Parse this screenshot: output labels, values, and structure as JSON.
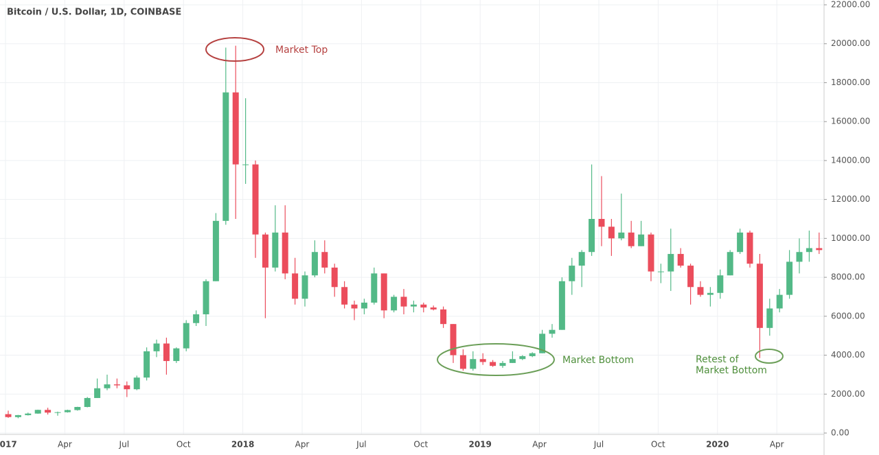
{
  "chart_data": {
    "type": "candlestick",
    "title": "Bitcoin / U.S. Dollar, 1D, COINBASE",
    "categories": [
      "2017",
      null,
      null,
      null,
      null,
      null,
      "Apr",
      null,
      null,
      null,
      null,
      null,
      "Jul",
      null,
      null,
      null,
      null,
      null,
      "Oct",
      null,
      null,
      null,
      null,
      null,
      "2018",
      null,
      null,
      null,
      null,
      null,
      "Apr",
      null,
      null,
      null,
      null,
      null,
      "Jul",
      null,
      null,
      null,
      null,
      null,
      "Oct",
      null,
      null,
      null,
      null,
      null,
      "2019",
      null,
      null,
      null,
      null,
      null,
      "Apr",
      null,
      null,
      null,
      null,
      null,
      "Jul",
      null,
      null,
      null,
      null,
      null,
      "Oct",
      null,
      null,
      null,
      null,
      null,
      "2020",
      null,
      null,
      null,
      null,
      null,
      "Apr",
      null,
      null,
      null,
      null
    ],
    "series": [
      {
        "up_color": "#53b987",
        "down_color": "#eb4d5c",
        "open": [
          970,
          820,
          920,
          1000,
          1190,
          1050,
          1070,
          1180,
          1340,
          1800,
          2300,
          2500,
          2450,
          2250,
          2850,
          4200,
          4600,
          3700,
          4350,
          5650,
          6100,
          7800,
          10900,
          17500,
          13800,
          13800,
          10200,
          8500,
          10300,
          8200,
          6900,
          8100,
          9300,
          8500,
          7500,
          6600,
          6400,
          6700,
          8200,
          6300,
          7000,
          6500,
          6600,
          6450,
          6350,
          5600,
          4000,
          3300,
          3800,
          3650,
          3450,
          3600,
          3800,
          3950,
          4100,
          5100,
          5300,
          7800,
          8600,
          9300,
          11000,
          10600,
          10000,
          10300,
          9600,
          10200,
          8300,
          8300,
          9200,
          8600,
          7500,
          7100,
          7200,
          8100,
          9300,
          10300,
          8700,
          5400,
          6400,
          7100,
          8800,
          9300,
          9500
        ],
        "high": [
          1150,
          930,
          1050,
          1200,
          1300,
          1100,
          1200,
          1350,
          1850,
          2800,
          3000,
          2800,
          2650,
          2950,
          4400,
          4800,
          4900,
          4400,
          5800,
          6300,
          7900,
          11300,
          19800,
          19900,
          17200,
          14000,
          10300,
          11700,
          11700,
          9000,
          8300,
          9900,
          9900,
          8700,
          7800,
          6800,
          6900,
          8500,
          8200,
          7100,
          7400,
          6800,
          6700,
          6550,
          6500,
          5600,
          4300,
          4200,
          4100,
          3750,
          3700,
          4200,
          4000,
          4150,
          5300,
          5600,
          8000,
          9000,
          9400,
          13800,
          13200,
          11000,
          12300,
          10900,
          10900,
          10300,
          8700,
          10500,
          9500,
          8700,
          7800,
          7500,
          8400,
          9400,
          10500,
          10400,
          9200,
          6900,
          7400,
          9400,
          10000,
          10400,
          10300
        ],
        "low": [
          780,
          760,
          900,
          990,
          950,
          890,
          1050,
          1150,
          1320,
          1800,
          2200,
          2300,
          1850,
          2200,
          2700,
          3900,
          3000,
          3600,
          4200,
          5500,
          5500,
          7800,
          10700,
          11000,
          12800,
          9000,
          5900,
          8300,
          7900,
          6600,
          6500,
          8000,
          8200,
          7000,
          6400,
          5800,
          6100,
          6600,
          5900,
          6200,
          6100,
          6200,
          6200,
          6300,
          5400,
          3600,
          3200,
          3200,
          3500,
          3400,
          3350,
          3600,
          3750,
          3900,
          4100,
          4900,
          5300,
          7100,
          7500,
          9100,
          9600,
          9100,
          9900,
          9500,
          9600,
          7800,
          7700,
          7300,
          8500,
          6600,
          7000,
          6500,
          6900,
          8100,
          9200,
          8500,
          3850,
          5000,
          6200,
          6900,
          8200,
          8800,
          9200
        ],
        "close": [
          820,
          920,
          1000,
          1190,
          1050,
          1070,
          1180,
          1340,
          1800,
          2300,
          2500,
          2450,
          2250,
          2850,
          4200,
          4600,
          3700,
          4350,
          5650,
          6100,
          7800,
          10900,
          17500,
          13800,
          13800,
          10200,
          8500,
          10300,
          8200,
          6900,
          8100,
          9300,
          8500,
          7500,
          6600,
          6400,
          6700,
          8200,
          6300,
          7000,
          6500,
          6600,
          6450,
          6350,
          5600,
          4000,
          3300,
          3800,
          3650,
          3450,
          3600,
          3800,
          3950,
          4100,
          5100,
          5300,
          7800,
          8600,
          9300,
          11000,
          10600,
          10000,
          10300,
          9600,
          10200,
          8300,
          8300,
          9200,
          8600,
          7500,
          7100,
          7200,
          8100,
          9300,
          10300,
          8700,
          5400,
          6400,
          7100,
          8800,
          9300,
          9500,
          9400
        ]
      }
    ],
    "ylim": [
      0,
      22000
    ],
    "yticks": [
      {
        "value": 0,
        "label": "0.00"
      },
      {
        "value": 2000,
        "label": "2000.00"
      },
      {
        "value": 4000,
        "label": "4000.00"
      },
      {
        "value": 6000,
        "label": "6000.00"
      },
      {
        "value": 8000,
        "label": "8000.00"
      },
      {
        "value": 10000,
        "label": "10000.00"
      },
      {
        "value": 12000,
        "label": "12000.00"
      },
      {
        "value": 14000,
        "label": "14000.00"
      },
      {
        "value": 16000,
        "label": "16000.00"
      },
      {
        "value": 18000,
        "label": "18000.00"
      },
      {
        "value": 20000,
        "label": "20000.00"
      },
      {
        "value": 22000,
        "label": "22000.00"
      }
    ],
    "grid": true,
    "annotations": {
      "top": "Market Top",
      "bottom": "Market Bottom",
      "retest": [
        "Retest of",
        "Market Bottom"
      ]
    }
  }
}
